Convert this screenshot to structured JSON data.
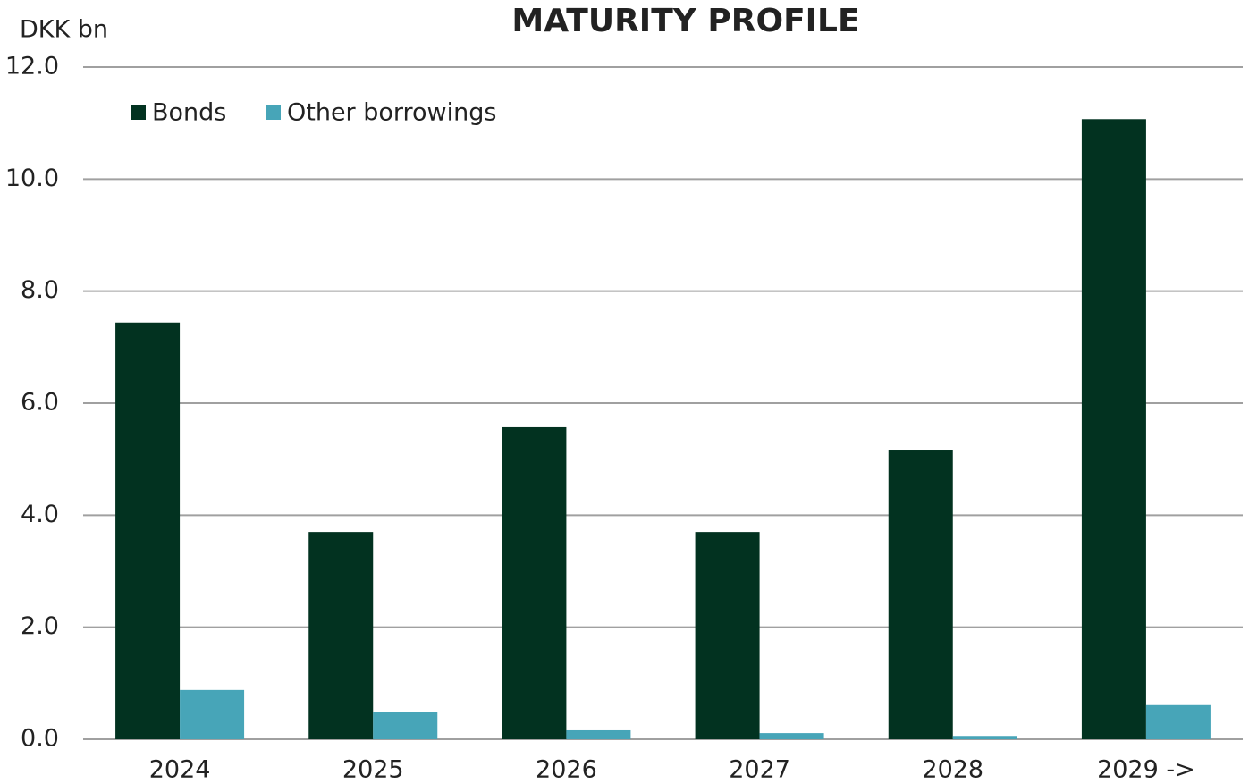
{
  "chart_data": {
    "type": "bar",
    "title": "MATURITY PROFILE",
    "y_label": "DKK bn",
    "categories": [
      "2024",
      "2025",
      "2026",
      "2027",
      "2028",
      "2029 ->"
    ],
    "series": [
      {
        "name": "Bonds",
        "color": "#023220",
        "values": [
          7.44,
          3.7,
          5.57,
          3.7,
          5.17,
          11.07
        ]
      },
      {
        "name": "Other borrowings",
        "color": "#47a5b8",
        "values": [
          0.88,
          0.48,
          0.16,
          0.11,
          0.06,
          0.61
        ]
      }
    ],
    "ylim": [
      0,
      12
    ],
    "yticks": [
      {
        "value": 0,
        "label": "0.0"
      },
      {
        "value": 2,
        "label": "2.0"
      },
      {
        "value": 4,
        "label": "4.0"
      },
      {
        "value": 6,
        "label": "6.0"
      },
      {
        "value": 8,
        "label": "8.0"
      },
      {
        "value": 10,
        "label": "10.0"
      },
      {
        "value": 12,
        "label": "12.0"
      }
    ],
    "grid": true,
    "legend": "top-left"
  }
}
